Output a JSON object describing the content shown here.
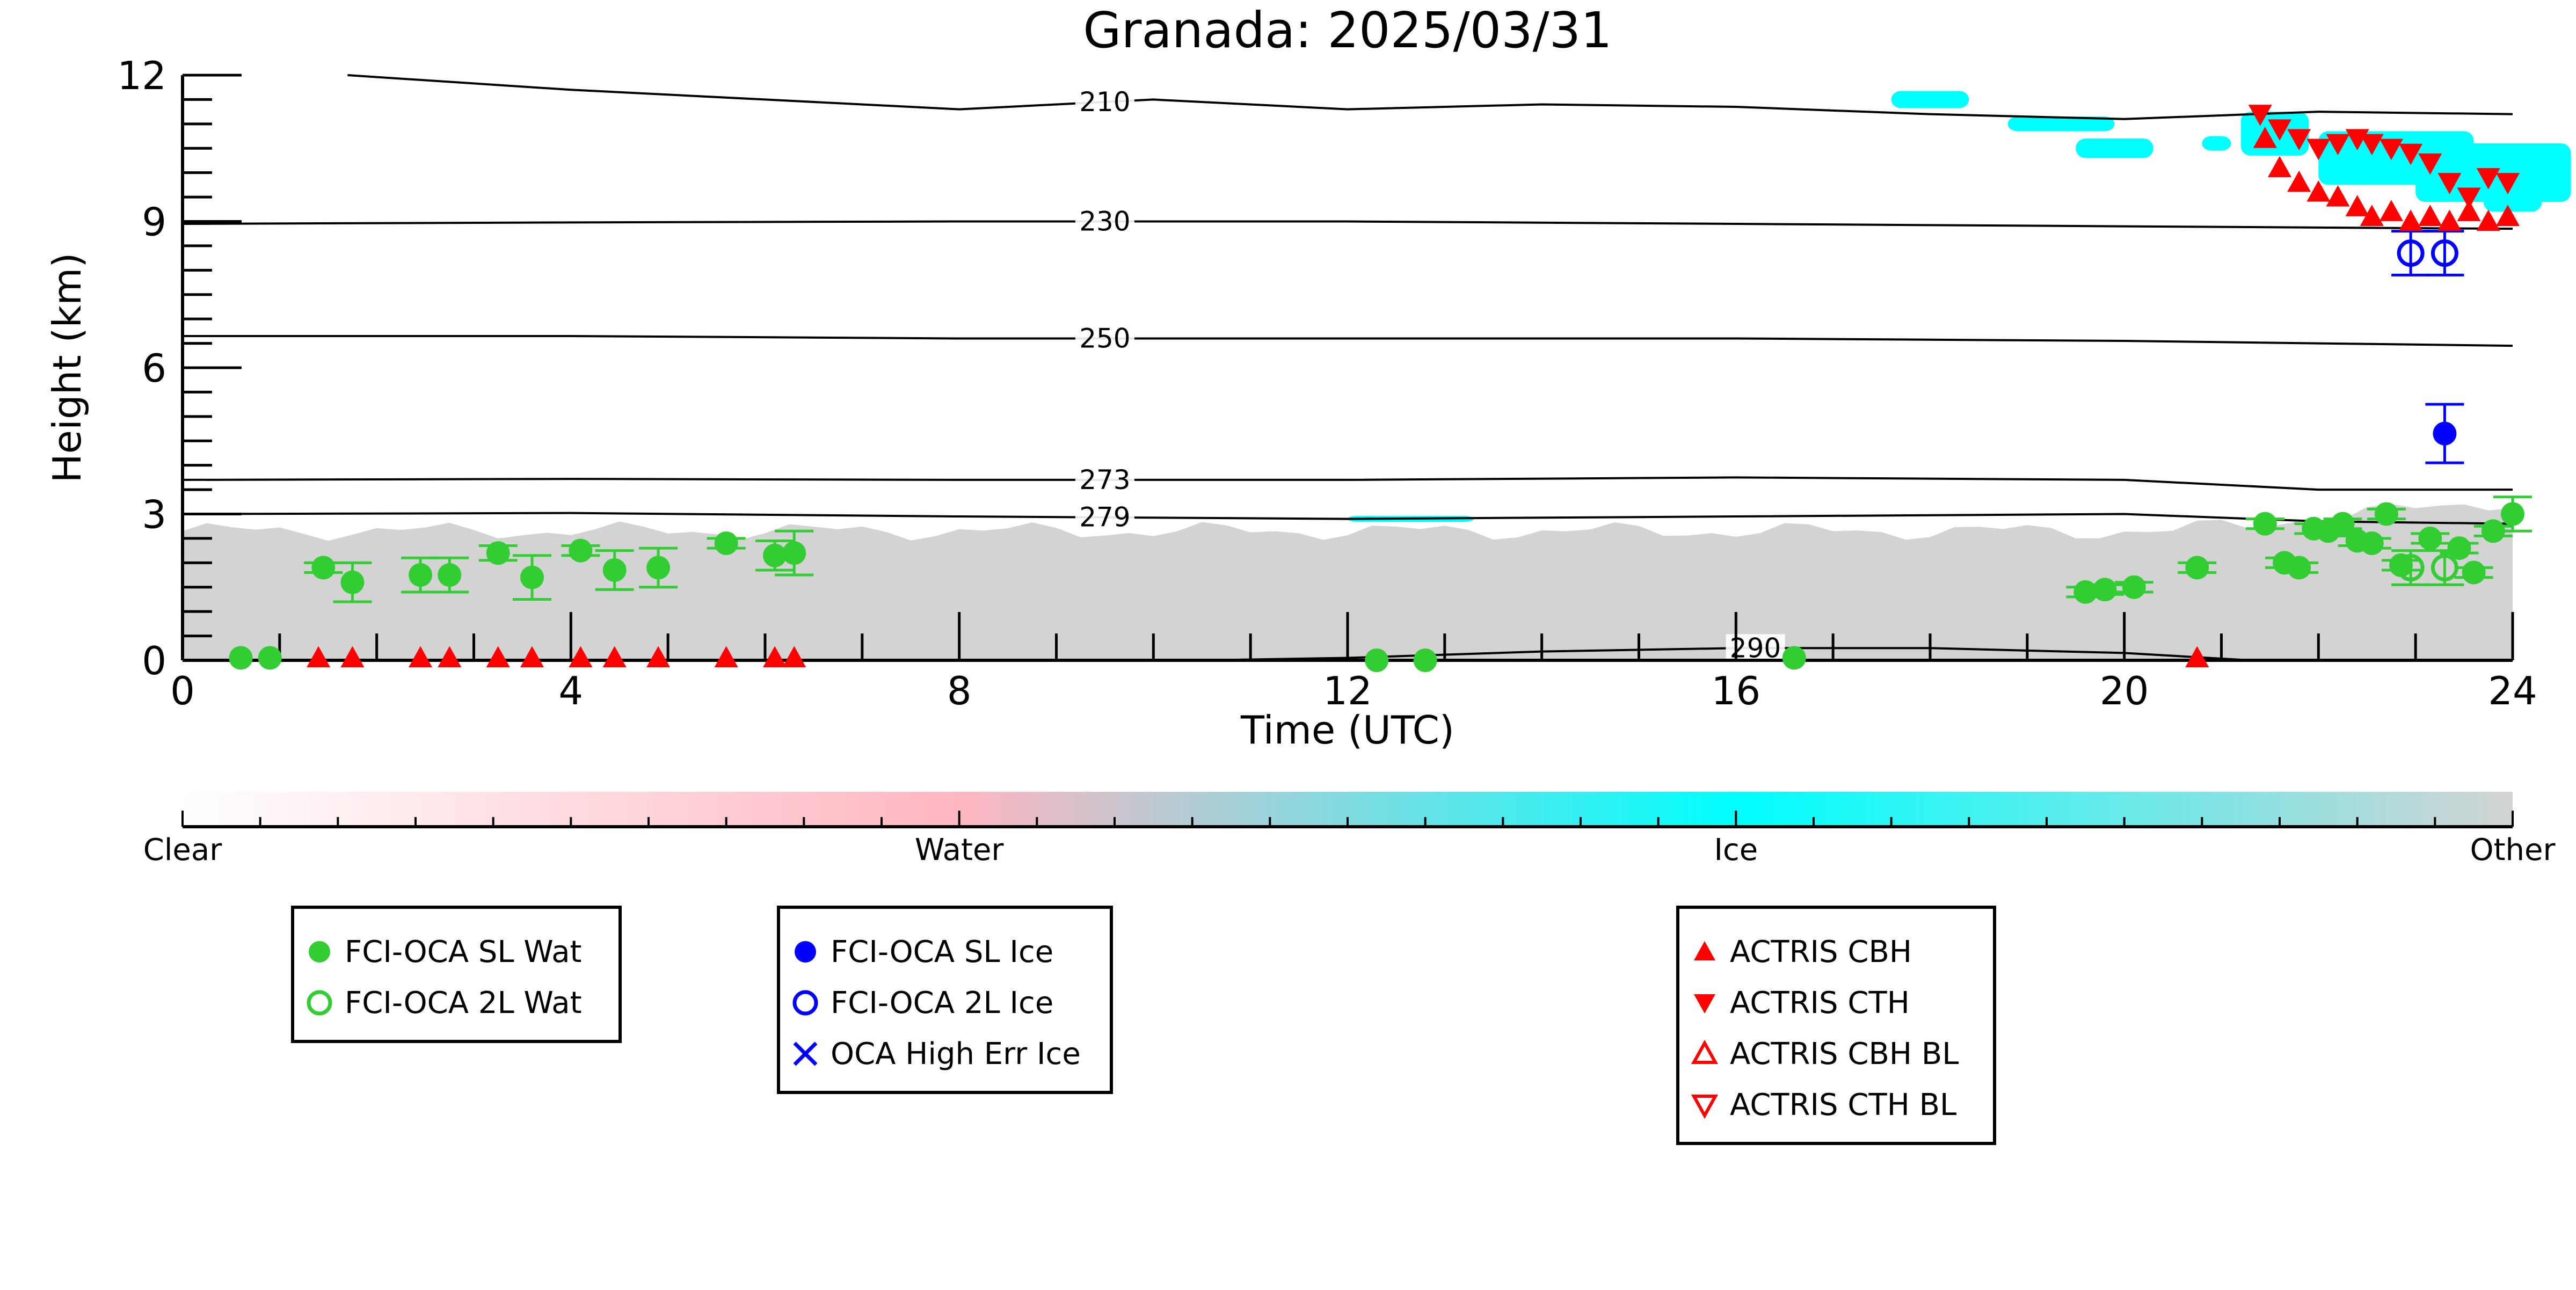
{
  "chart_data": {
    "type": "scatter",
    "title": "Granada: 2025/03/31",
    "xlabel": "Time (UTC)",
    "ylabel": "Height (km)",
    "xlim": [
      0,
      24
    ],
    "ylim": [
      0,
      12
    ],
    "x_ticks": [
      0,
      4,
      8,
      12,
      16,
      20,
      24
    ],
    "y_ticks": [
      0,
      3,
      6,
      9,
      12
    ],
    "grid": false,
    "background_layers": {
      "low_cloud_top_km": 3.0,
      "ice_color": "#00ffff",
      "other_color": "#d3d3d3"
    },
    "isotherms": [
      {
        "label": "210",
        "x": [
          1.7,
          4,
          6,
          8,
          10,
          12,
          14,
          16,
          18,
          20,
          22,
          24
        ],
        "y": [
          12.0,
          11.7,
          11.5,
          11.3,
          11.5,
          11.3,
          11.4,
          11.35,
          11.2,
          11.1,
          11.25,
          11.2
        ],
        "label_x": 9.5
      },
      {
        "label": "230",
        "x": [
          0,
          4,
          8,
          12,
          16,
          20,
          24
        ],
        "y": [
          8.95,
          8.98,
          9.0,
          9.0,
          8.95,
          8.9,
          8.85
        ],
        "label_x": 9.5
      },
      {
        "label": "250",
        "x": [
          0,
          4,
          8,
          12,
          16,
          20,
          24
        ],
        "y": [
          6.65,
          6.65,
          6.6,
          6.6,
          6.6,
          6.55,
          6.45
        ],
        "label_x": 9.5
      },
      {
        "label": "273",
        "x": [
          0,
          4,
          8,
          12,
          16,
          20,
          22,
          24
        ],
        "y": [
          3.7,
          3.72,
          3.7,
          3.7,
          3.75,
          3.7,
          3.5,
          3.5
        ],
        "label_x": 9.5
      },
      {
        "label": "279",
        "x": [
          0,
          4,
          8,
          12,
          16,
          20,
          22,
          24
        ],
        "y": [
          3.0,
          3.02,
          2.95,
          2.9,
          2.95,
          3.0,
          2.85,
          2.8
        ],
        "label_x": 9.5
      },
      {
        "label": "290",
        "x": [
          10.5,
          12,
          14,
          16,
          18,
          20,
          21.3
        ],
        "y": [
          0.0,
          0.05,
          0.18,
          0.25,
          0.25,
          0.15,
          0.0
        ],
        "label_x": 16.2
      }
    ],
    "series": [
      {
        "name": "FCI-OCA SL Wat",
        "color": "#32cd32",
        "marker": "filled-circle",
        "x": [
          0.6,
          0.9,
          1.45,
          1.75,
          2.45,
          2.75,
          3.25,
          3.6,
          4.1,
          4.45,
          4.9,
          5.6,
          6.1,
          6.3,
          12.3,
          12.8,
          16.6,
          19.6,
          19.8,
          20.1,
          20.75,
          21.45,
          21.65,
          21.8,
          21.95,
          22.1,
          22.25,
          22.4,
          22.55,
          22.7,
          22.85,
          23.15,
          23.45,
          23.6,
          23.8,
          24.0
        ],
        "y": [
          0.05,
          0.05,
          1.9,
          1.6,
          1.75,
          1.75,
          2.2,
          1.7,
          2.25,
          1.85,
          1.9,
          2.4,
          2.15,
          2.2,
          0.0,
          0.0,
          0.05,
          1.4,
          1.45,
          1.5,
          1.9,
          2.8,
          2.0,
          1.9,
          2.7,
          2.65,
          2.8,
          2.45,
          2.4,
          3.0,
          1.95,
          2.5,
          2.3,
          1.8,
          2.65,
          3.0
        ],
        "err": [
          0,
          0,
          0.1,
          0.4,
          0.35,
          0.35,
          0.15,
          0.45,
          0.1,
          0.4,
          0.4,
          0.1,
          0.3,
          0.45,
          0,
          0,
          0,
          0.1,
          0.1,
          0.1,
          0.1,
          0.1,
          0.1,
          0.1,
          0.1,
          0.1,
          0.1,
          0.1,
          0.1,
          0.1,
          0.1,
          0.1,
          0.1,
          0.1,
          0.1,
          0.35
        ]
      },
      {
        "name": "FCI-OCA 2L Wat",
        "color": "#32cd32",
        "marker": "open-circle",
        "x": [
          22.95,
          23.3
        ],
        "y": [
          1.9,
          1.9
        ],
        "err": [
          0.35,
          0.35
        ]
      },
      {
        "name": "FCI-OCA SL Ice",
        "color": "#0000ff",
        "marker": "filled-circle",
        "x": [
          23.3
        ],
        "y": [
          4.65
        ],
        "err": [
          0.6
        ]
      },
      {
        "name": "FCI-OCA 2L Ice",
        "color": "#0000ff",
        "marker": "open-circle",
        "x": [
          22.95,
          23.3
        ],
        "y": [
          8.35,
          8.35
        ],
        "err": [
          0.45,
          0.45
        ]
      },
      {
        "name": "OCA High Err Ice",
        "color": "#0000ff",
        "marker": "x",
        "x": [],
        "y": []
      },
      {
        "name": "ACTRIS CBH",
        "color": "#ff0000",
        "marker": "filled-triangle-up",
        "x": [
          1.4,
          1.75,
          2.45,
          2.75,
          3.25,
          3.6,
          4.1,
          4.45,
          4.9,
          5.6,
          6.1,
          6.3,
          20.75,
          21.45,
          21.6,
          21.8,
          22.0,
          22.2,
          22.4,
          22.55,
          22.75,
          22.95,
          23.15,
          23.35,
          23.55,
          23.75,
          23.95
        ],
        "y": [
          0.05,
          0.05,
          0.05,
          0.05,
          0.05,
          0.05,
          0.05,
          0.05,
          0.05,
          0.05,
          0.05,
          0.05,
          0.05,
          10.7,
          10.1,
          9.8,
          9.6,
          9.5,
          9.3,
          9.1,
          9.2,
          9.0,
          9.1,
          9.0,
          9.2,
          9.0,
          9.1
        ]
      },
      {
        "name": "ACTRIS CTH",
        "color": "#ff0000",
        "marker": "filled-triangle-down",
        "x": [
          21.4,
          21.6,
          21.8,
          22.0,
          22.2,
          22.4,
          22.55,
          22.75,
          22.95,
          23.15,
          23.35,
          23.55,
          23.75,
          23.95
        ],
        "y": [
          11.2,
          10.9,
          10.7,
          10.5,
          10.6,
          10.7,
          10.6,
          10.5,
          10.4,
          10.2,
          9.8,
          9.5,
          9.9,
          9.8
        ]
      },
      {
        "name": "ACTRIS CBH BL",
        "color": "#ff0000",
        "marker": "open-triangle-up",
        "x": [],
        "y": []
      },
      {
        "name": "ACTRIS CTH BL",
        "color": "#ff0000",
        "marker": "open-triangle-down",
        "x": [],
        "y": []
      }
    ],
    "colorbar": {
      "labels": [
        "Clear",
        "Water",
        "Ice",
        "Other"
      ],
      "colors": [
        "#ffffff",
        "#ffb6c1",
        "#00ffff",
        "#d3d3d3"
      ]
    },
    "legends": [
      {
        "entries": [
          "FCI-OCA SL Wat",
          "FCI-OCA 2L Wat"
        ]
      },
      {
        "entries": [
          "FCI-OCA SL Ice",
          "FCI-OCA 2L Ice",
          "OCA High Err Ice"
        ]
      },
      {
        "entries": [
          "ACTRIS CBH",
          "ACTRIS CTH",
          "ACTRIS CBH BL",
          "ACTRIS CTH BL"
        ]
      }
    ]
  }
}
